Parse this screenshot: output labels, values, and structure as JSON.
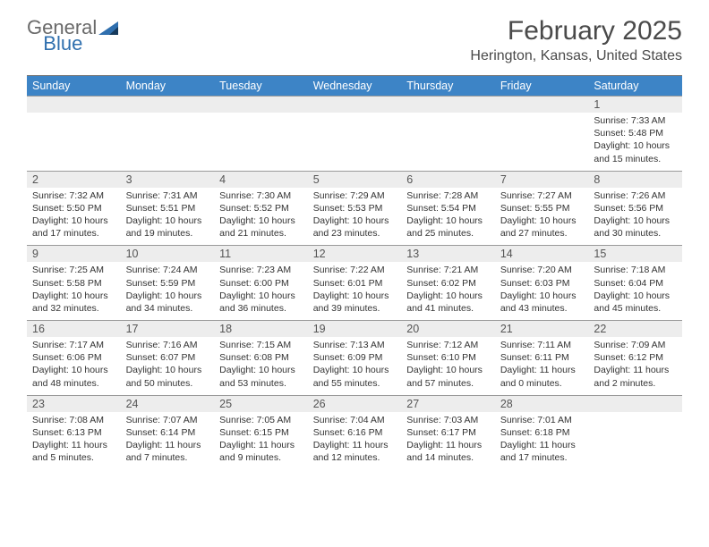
{
  "logo": {
    "general": "General",
    "blue": "Blue"
  },
  "title": "February 2025",
  "location": "Herington, Kansas, United States",
  "header_bg": "#3d84c6",
  "daynum_bg": "#ededed",
  "dow": [
    "Sunday",
    "Monday",
    "Tuesday",
    "Wednesday",
    "Thursday",
    "Friday",
    "Saturday"
  ],
  "weeks": [
    [
      null,
      null,
      null,
      null,
      null,
      null,
      {
        "n": "1",
        "sr": "7:33 AM",
        "ss": "5:48 PM",
        "dl": "10 hours and 15 minutes."
      }
    ],
    [
      {
        "n": "2",
        "sr": "7:32 AM",
        "ss": "5:50 PM",
        "dl": "10 hours and 17 minutes."
      },
      {
        "n": "3",
        "sr": "7:31 AM",
        "ss": "5:51 PM",
        "dl": "10 hours and 19 minutes."
      },
      {
        "n": "4",
        "sr": "7:30 AM",
        "ss": "5:52 PM",
        "dl": "10 hours and 21 minutes."
      },
      {
        "n": "5",
        "sr": "7:29 AM",
        "ss": "5:53 PM",
        "dl": "10 hours and 23 minutes."
      },
      {
        "n": "6",
        "sr": "7:28 AM",
        "ss": "5:54 PM",
        "dl": "10 hours and 25 minutes."
      },
      {
        "n": "7",
        "sr": "7:27 AM",
        "ss": "5:55 PM",
        "dl": "10 hours and 27 minutes."
      },
      {
        "n": "8",
        "sr": "7:26 AM",
        "ss": "5:56 PM",
        "dl": "10 hours and 30 minutes."
      }
    ],
    [
      {
        "n": "9",
        "sr": "7:25 AM",
        "ss": "5:58 PM",
        "dl": "10 hours and 32 minutes."
      },
      {
        "n": "10",
        "sr": "7:24 AM",
        "ss": "5:59 PM",
        "dl": "10 hours and 34 minutes."
      },
      {
        "n": "11",
        "sr": "7:23 AM",
        "ss": "6:00 PM",
        "dl": "10 hours and 36 minutes."
      },
      {
        "n": "12",
        "sr": "7:22 AM",
        "ss": "6:01 PM",
        "dl": "10 hours and 39 minutes."
      },
      {
        "n": "13",
        "sr": "7:21 AM",
        "ss": "6:02 PM",
        "dl": "10 hours and 41 minutes."
      },
      {
        "n": "14",
        "sr": "7:20 AM",
        "ss": "6:03 PM",
        "dl": "10 hours and 43 minutes."
      },
      {
        "n": "15",
        "sr": "7:18 AM",
        "ss": "6:04 PM",
        "dl": "10 hours and 45 minutes."
      }
    ],
    [
      {
        "n": "16",
        "sr": "7:17 AM",
        "ss": "6:06 PM",
        "dl": "10 hours and 48 minutes."
      },
      {
        "n": "17",
        "sr": "7:16 AM",
        "ss": "6:07 PM",
        "dl": "10 hours and 50 minutes."
      },
      {
        "n": "18",
        "sr": "7:15 AM",
        "ss": "6:08 PM",
        "dl": "10 hours and 53 minutes."
      },
      {
        "n": "19",
        "sr": "7:13 AM",
        "ss": "6:09 PM",
        "dl": "10 hours and 55 minutes."
      },
      {
        "n": "20",
        "sr": "7:12 AM",
        "ss": "6:10 PM",
        "dl": "10 hours and 57 minutes."
      },
      {
        "n": "21",
        "sr": "7:11 AM",
        "ss": "6:11 PM",
        "dl": "11 hours and 0 minutes."
      },
      {
        "n": "22",
        "sr": "7:09 AM",
        "ss": "6:12 PM",
        "dl": "11 hours and 2 minutes."
      }
    ],
    [
      {
        "n": "23",
        "sr": "7:08 AM",
        "ss": "6:13 PM",
        "dl": "11 hours and 5 minutes."
      },
      {
        "n": "24",
        "sr": "7:07 AM",
        "ss": "6:14 PM",
        "dl": "11 hours and 7 minutes."
      },
      {
        "n": "25",
        "sr": "7:05 AM",
        "ss": "6:15 PM",
        "dl": "11 hours and 9 minutes."
      },
      {
        "n": "26",
        "sr": "7:04 AM",
        "ss": "6:16 PM",
        "dl": "11 hours and 12 minutes."
      },
      {
        "n": "27",
        "sr": "7:03 AM",
        "ss": "6:17 PM",
        "dl": "11 hours and 14 minutes."
      },
      {
        "n": "28",
        "sr": "7:01 AM",
        "ss": "6:18 PM",
        "dl": "11 hours and 17 minutes."
      },
      null
    ]
  ],
  "labels": {
    "sunrise": "Sunrise:",
    "sunset": "Sunset:",
    "daylight": "Daylight:"
  }
}
